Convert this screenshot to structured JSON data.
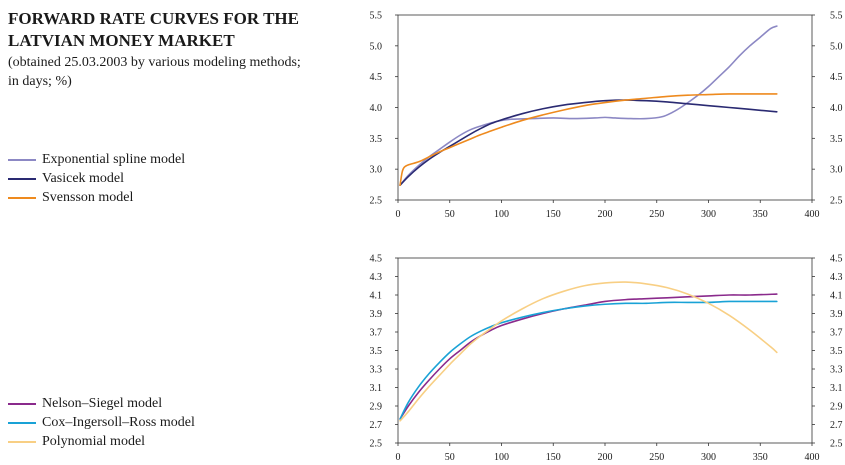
{
  "header": {
    "title_line1": "FORWARD RATE CURVES FOR THE",
    "title_line2": "LATVIAN MONEY MARKET",
    "subtitle_line1": "(obtained 25.03.2003 by various modeling methods;",
    "subtitle_line2": "in days; %)"
  },
  "chart_data": [
    {
      "type": "line",
      "xlim": [
        0,
        400
      ],
      "ylim": [
        2.5,
        5.5
      ],
      "x_ticks": [
        "0",
        "50",
        "100",
        "150",
        "200",
        "250",
        "300",
        "350",
        "400"
      ],
      "y_ticks": [
        "2.5",
        "3.0",
        "3.5",
        "4.0",
        "4.5",
        "5.0",
        "5.5"
      ],
      "series": [
        {
          "name": "Exponential spline model",
          "color": "#8c88c4",
          "points": [
            [
              2,
              2.74
            ],
            [
              10,
              2.9
            ],
            [
              20,
              3.06
            ],
            [
              30,
              3.2
            ],
            [
              40,
              3.32
            ],
            [
              50,
              3.44
            ],
            [
              60,
              3.55
            ],
            [
              70,
              3.64
            ],
            [
              80,
              3.7
            ],
            [
              90,
              3.75
            ],
            [
              100,
              3.79
            ],
            [
              110,
              3.81
            ],
            [
              130,
              3.82
            ],
            [
              150,
              3.83
            ],
            [
              170,
              3.82
            ],
            [
              190,
              3.83
            ],
            [
              200,
              3.84
            ],
            [
              210,
              3.83
            ],
            [
              225,
              3.82
            ],
            [
              240,
              3.82
            ],
            [
              255,
              3.85
            ],
            [
              265,
              3.92
            ],
            [
              275,
              4.02
            ],
            [
              290,
              4.2
            ],
            [
              300,
              4.34
            ],
            [
              310,
              4.5
            ],
            [
              320,
              4.66
            ],
            [
              330,
              4.84
            ],
            [
              340,
              5.0
            ],
            [
              350,
              5.14
            ],
            [
              360,
              5.28
            ],
            [
              366,
              5.32
            ]
          ]
        },
        {
          "name": "Vasicek model",
          "color": "#2a2a72",
          "points": [
            [
              2,
              2.74
            ],
            [
              10,
              2.88
            ],
            [
              20,
              3.03
            ],
            [
              30,
              3.16
            ],
            [
              40,
              3.27
            ],
            [
              50,
              3.37
            ],
            [
              60,
              3.47
            ],
            [
              70,
              3.57
            ],
            [
              80,
              3.66
            ],
            [
              90,
              3.74
            ],
            [
              100,
              3.8
            ],
            [
              120,
              3.9
            ],
            [
              140,
              3.98
            ],
            [
              160,
              4.04
            ],
            [
              180,
              4.08
            ],
            [
              200,
              4.11
            ],
            [
              220,
              4.12
            ],
            [
              240,
              4.11
            ],
            [
              260,
              4.09
            ],
            [
              280,
              4.06
            ],
            [
              300,
              4.03
            ],
            [
              320,
              4.0
            ],
            [
              340,
              3.97
            ],
            [
              366,
              3.93
            ]
          ]
        },
        {
          "name": "Svensson model",
          "color": "#ee8a1e",
          "points": [
            [
              2,
              2.74
            ],
            [
              4,
              2.95
            ],
            [
              6,
              3.03
            ],
            [
              10,
              3.07
            ],
            [
              20,
              3.12
            ],
            [
              30,
              3.2
            ],
            [
              40,
              3.28
            ],
            [
              50,
              3.35
            ],
            [
              60,
              3.42
            ],
            [
              70,
              3.49
            ],
            [
              80,
              3.56
            ],
            [
              90,
              3.62
            ],
            [
              100,
              3.68
            ],
            [
              120,
              3.79
            ],
            [
              140,
              3.88
            ],
            [
              160,
              3.96
            ],
            [
              180,
              4.03
            ],
            [
              200,
              4.08
            ],
            [
              220,
              4.12
            ],
            [
              240,
              4.15
            ],
            [
              260,
              4.18
            ],
            [
              280,
              4.2
            ],
            [
              300,
              4.21
            ],
            [
              320,
              4.22
            ],
            [
              340,
              4.22
            ],
            [
              366,
              4.22
            ]
          ]
        }
      ]
    },
    {
      "type": "line",
      "xlim": [
        0,
        400
      ],
      "ylim": [
        2.5,
        4.5
      ],
      "x_ticks": [
        "0",
        "50",
        "100",
        "150",
        "200",
        "250",
        "300",
        "350",
        "400"
      ],
      "y_ticks": [
        "2.5",
        "2.7",
        "2.9",
        "3.1",
        "3.3",
        "3.5",
        "3.7",
        "3.9",
        "4.1",
        "4.3",
        "4.5"
      ],
      "series": [
        {
          "name": "Nelson–Siegel model",
          "color": "#8a2a8c",
          "points": [
            [
              2,
              2.76
            ],
            [
              10,
              2.9
            ],
            [
              20,
              3.05
            ],
            [
              30,
              3.18
            ],
            [
              40,
              3.3
            ],
            [
              50,
              3.41
            ],
            [
              60,
              3.5
            ],
            [
              70,
              3.59
            ],
            [
              80,
              3.66
            ],
            [
              90,
              3.72
            ],
            [
              100,
              3.77
            ],
            [
              120,
              3.84
            ],
            [
              140,
              3.9
            ],
            [
              160,
              3.95
            ],
            [
              180,
              3.99
            ],
            [
              200,
              4.03
            ],
            [
              220,
              4.05
            ],
            [
              240,
              4.06
            ],
            [
              260,
              4.07
            ],
            [
              280,
              4.08
            ],
            [
              300,
              4.09
            ],
            [
              320,
              4.1
            ],
            [
              340,
              4.1
            ],
            [
              366,
              4.11
            ]
          ]
        },
        {
          "name": "Cox–Ingersoll–Ross model",
          "color": "#19a2d6",
          "points": [
            [
              2,
              2.76
            ],
            [
              10,
              2.94
            ],
            [
              20,
              3.11
            ],
            [
              30,
              3.25
            ],
            [
              40,
              3.37
            ],
            [
              50,
              3.48
            ],
            [
              60,
              3.57
            ],
            [
              70,
              3.65
            ],
            [
              80,
              3.71
            ],
            [
              90,
              3.76
            ],
            [
              100,
              3.8
            ],
            [
              120,
              3.86
            ],
            [
              140,
              3.91
            ],
            [
              160,
              3.95
            ],
            [
              180,
              3.98
            ],
            [
              200,
              4.0
            ],
            [
              220,
              4.01
            ],
            [
              240,
              4.01
            ],
            [
              260,
              4.02
            ],
            [
              280,
              4.02
            ],
            [
              300,
              4.02
            ],
            [
              320,
              4.03
            ],
            [
              340,
              4.03
            ],
            [
              366,
              4.03
            ]
          ]
        },
        {
          "name": "Polynomial model",
          "color": "#f8cf84",
          "points": [
            [
              2,
              2.74
            ],
            [
              10,
              2.84
            ],
            [
              20,
              2.98
            ],
            [
              30,
              3.11
            ],
            [
              40,
              3.23
            ],
            [
              50,
              3.35
            ],
            [
              60,
              3.46
            ],
            [
              70,
              3.57
            ],
            [
              80,
              3.66
            ],
            [
              90,
              3.74
            ],
            [
              100,
              3.82
            ],
            [
              120,
              3.95
            ],
            [
              140,
              4.06
            ],
            [
              160,
              4.14
            ],
            [
              180,
              4.2
            ],
            [
              200,
              4.23
            ],
            [
              220,
              4.24
            ],
            [
              240,
              4.22
            ],
            [
              260,
              4.18
            ],
            [
              280,
              4.11
            ],
            [
              300,
              4.01
            ],
            [
              320,
              3.88
            ],
            [
              340,
              3.72
            ],
            [
              360,
              3.54
            ],
            [
              366,
              3.48
            ]
          ]
        }
      ]
    }
  ]
}
